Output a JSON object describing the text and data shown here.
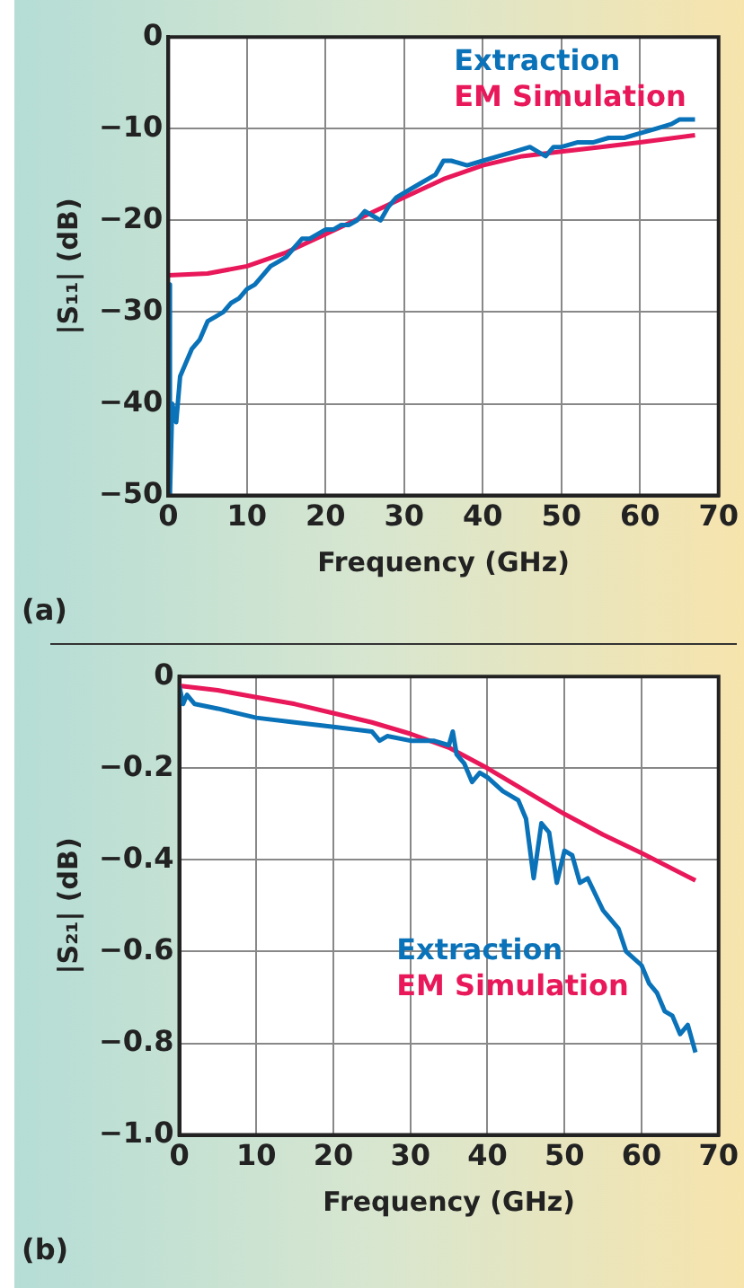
{
  "chart_data": [
    {
      "type": "line",
      "xlabel": "Frequency (GHz)",
      "ylabel": "|S₁₁| (dB)",
      "annotations": [
        "(a)"
      ],
      "xlim": [
        0,
        70
      ],
      "xticks": [
        0,
        10,
        20,
        30,
        40,
        50,
        60,
        70
      ],
      "ylim": [
        -50,
        0
      ],
      "yticks": [
        {
          "value": -50,
          "label": "−50"
        },
        {
          "value": -40,
          "label": "−40"
        },
        {
          "value": -30,
          "label": "−30"
        },
        {
          "value": -20,
          "label": "−20"
        },
        {
          "value": -10,
          "label": "−10"
        },
        0
      ],
      "grid": true,
      "legend": "top right",
      "series": [
        {
          "name": "Extraction",
          "color": "#0a72b8",
          "x": [
            0.1,
            0.2,
            0.5,
            1,
            1.5,
            2,
            3,
            4,
            5,
            6,
            7,
            8,
            9,
            10,
            11,
            12,
            13,
            14,
            15,
            16,
            17,
            18,
            19,
            20,
            21,
            22,
            23,
            24,
            25,
            26,
            27,
            28,
            29,
            30,
            32,
            34,
            35,
            36,
            38,
            40,
            42,
            44,
            46,
            47,
            48,
            49,
            50,
            52,
            54,
            56,
            58,
            60,
            62,
            64,
            65,
            66,
            67
          ],
          "values": [
            -27,
            -50,
            -40,
            -42,
            -37,
            -36,
            -34,
            -33,
            -31,
            -30.5,
            -30,
            -29,
            -28.5,
            -27.5,
            -27,
            -26,
            -25,
            -24.5,
            -24,
            -23,
            -22,
            -22,
            -21.5,
            -21,
            -21,
            -20.5,
            -20.5,
            -20,
            -19,
            -19.5,
            -20,
            -18.5,
            -17.5,
            -17,
            -16,
            -15,
            -13.5,
            -13.5,
            -14,
            -13.5,
            -13,
            -12.5,
            -12,
            -12.5,
            -13,
            -12,
            -12,
            -11.5,
            -11.5,
            -11,
            -11,
            -10.5,
            -10,
            -9.5,
            -9,
            -9,
            -9
          ]
        },
        {
          "name": "EM Simulation",
          "color": "#e8185a",
          "x": [
            0,
            5,
            10,
            15,
            20,
            25,
            30,
            35,
            40,
            45,
            50,
            55,
            60,
            67
          ],
          "values": [
            -26,
            -25.8,
            -25,
            -23.5,
            -21.5,
            -19.5,
            -17.5,
            -15.5,
            -14,
            -13,
            -12.5,
            -12,
            -11.5,
            -10.7
          ]
        }
      ]
    },
    {
      "type": "line",
      "xlabel": "Frequency (GHz)",
      "ylabel": "|S₂₁| (dB)",
      "annotations": [
        "(b)"
      ],
      "xlim": [
        0,
        70
      ],
      "xticks": [
        0,
        10,
        20,
        30,
        40,
        50,
        60,
        70
      ],
      "ylim": [
        -1,
        0
      ],
      "yticks": [
        {
          "value": -1,
          "label": "−1.0"
        },
        {
          "value": -0.8,
          "label": "−0.8"
        },
        {
          "value": -0.6,
          "label": "−0.6"
        },
        {
          "value": -0.4,
          "label": "−0.4"
        },
        {
          "value": -0.2,
          "label": "−0.2"
        },
        0
      ],
      "grid": true,
      "legend": "bottom right",
      "series": [
        {
          "name": "Extraction",
          "color": "#0a72b8",
          "x": [
            0,
            0.5,
            1,
            2,
            5,
            10,
            15,
            20,
            25,
            26,
            27,
            30,
            33,
            35,
            35.5,
            36,
            37,
            38,
            39,
            40,
            42,
            43,
            44,
            45,
            46,
            47,
            48,
            49,
            50,
            51,
            52,
            53,
            55,
            57,
            58,
            60,
            61,
            62,
            63,
            64,
            65,
            66,
            67
          ],
          "values": [
            -0.02,
            -0.06,
            -0.04,
            -0.06,
            -0.07,
            -0.09,
            -0.1,
            -0.11,
            -0.12,
            -0.14,
            -0.13,
            -0.14,
            -0.14,
            -0.15,
            -0.12,
            -0.17,
            -0.19,
            -0.23,
            -0.21,
            -0.22,
            -0.25,
            -0.26,
            -0.27,
            -0.31,
            -0.44,
            -0.32,
            -0.34,
            -0.45,
            -0.38,
            -0.39,
            -0.45,
            -0.44,
            -0.51,
            -0.55,
            -0.6,
            -0.63,
            -0.67,
            -0.69,
            -0.73,
            -0.74,
            -0.78,
            -0.76,
            -0.82
          ]
        },
        {
          "name": "EM Simulation",
          "color": "#e8185a",
          "x": [
            0,
            5,
            10,
            15,
            20,
            25,
            30,
            35,
            40,
            45,
            50,
            55,
            60,
            67
          ],
          "values": [
            -0.02,
            -0.03,
            -0.045,
            -0.06,
            -0.08,
            -0.1,
            -0.125,
            -0.155,
            -0.2,
            -0.25,
            -0.3,
            -0.345,
            -0.385,
            -0.445
          ]
        }
      ]
    }
  ]
}
